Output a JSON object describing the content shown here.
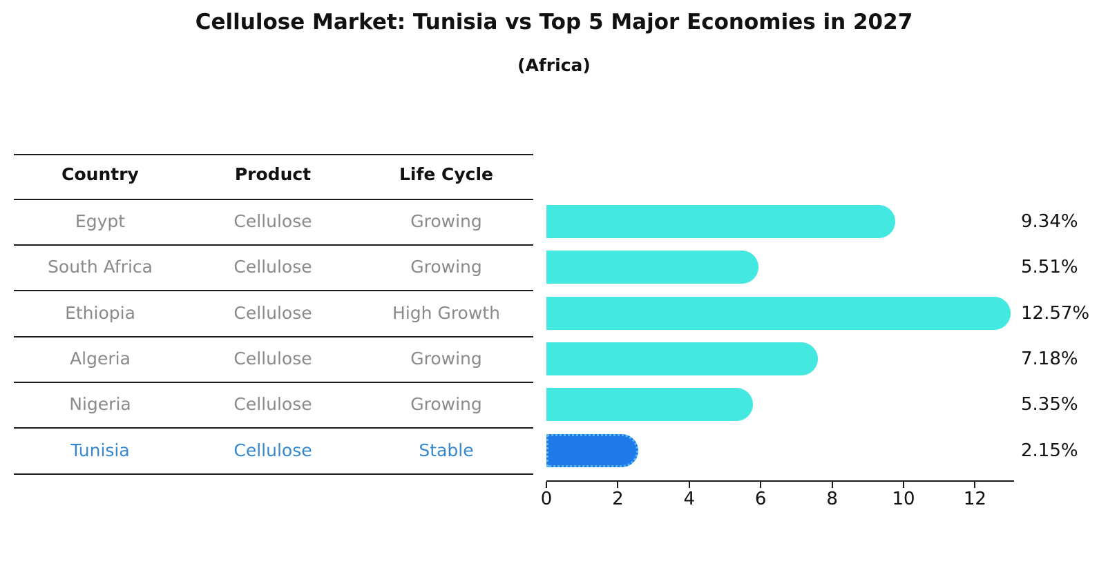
{
  "title": "Cellulose Market: Tunisia vs Top 5 Major Economies in 2027",
  "subtitle": "(Africa)",
  "table": {
    "headers": [
      "Country",
      "Product",
      "Life Cycle"
    ],
    "rows": [
      {
        "country": "Egypt",
        "product": "Cellulose",
        "life_cycle": "Growing",
        "highlight": false
      },
      {
        "country": "South Africa",
        "product": "Cellulose",
        "life_cycle": "Growing",
        "highlight": false
      },
      {
        "country": "Ethiopia",
        "product": "Cellulose",
        "life_cycle": "High Growth",
        "highlight": false
      },
      {
        "country": "Algeria",
        "product": "Cellulose",
        "life_cycle": "Growing",
        "highlight": false
      },
      {
        "country": "Nigeria",
        "product": "Cellulose",
        "life_cycle": "Growing",
        "highlight": false
      },
      {
        "country": "Tunisia",
        "product": "Cellulose",
        "life_cycle": "Stable",
        "highlight": true
      }
    ]
  },
  "chart_data": {
    "type": "bar",
    "orientation": "horizontal",
    "title": "Cellulose Market: Tunisia vs Top 5 Major Economies in 2027",
    "subtitle": "(Africa)",
    "categories": [
      "Egypt",
      "South Africa",
      "Ethiopia",
      "Algeria",
      "Nigeria",
      "Tunisia"
    ],
    "values": [
      9.34,
      5.51,
      12.57,
      7.18,
      5.35,
      2.15
    ],
    "value_labels": [
      "9.34%",
      "5.51%",
      "12.57%",
      "7.18%",
      "5.35%",
      "2.15%"
    ],
    "highlight_index": 5,
    "xlim": [
      0,
      13.1
    ],
    "xticks": [
      0,
      2,
      4,
      6,
      8,
      10,
      12
    ],
    "grid": false,
    "legend": "none",
    "bar_style": "rounded-end",
    "colors": {
      "bar": "#43e8e0",
      "highlight_bar": "#1e7ae8",
      "highlight_border": "#58b8f6",
      "highlight_text": "#3787ce",
      "row_text": "#8a8a8a",
      "header_text": "#111111",
      "axis": "#1a1a1a"
    }
  }
}
